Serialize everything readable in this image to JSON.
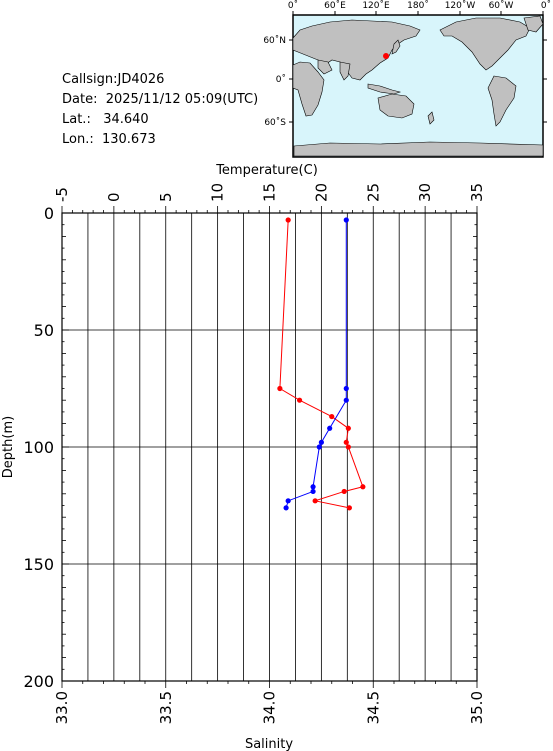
{
  "station": {
    "callsign": "Callsign:JD4026",
    "date": "Date:  2025/11/12 05:09(UTC)",
    "lat": "Lat.:   34.640",
    "lon": "Lon.:  130.673"
  },
  "map": {
    "top_labels": [
      "0˚",
      "60˚E",
      "120˚E",
      "180˚",
      "120˚W",
      "60˚W",
      "0˚"
    ],
    "left_labels": [
      "60˚N",
      "0˚",
      "60˚S"
    ],
    "ocean_color": "#d8f5fb",
    "land_color": "#c0c0c0",
    "marker_color": "#ff0000"
  },
  "chart_data": {
    "type": "line",
    "title": "",
    "depth_label": "Depth(m)",
    "temp_label": "Temperature(C)",
    "sal_label": "Salinity",
    "depth_range": [
      0,
      200
    ],
    "depth_ticks": [
      "0",
      "50",
      "100",
      "150",
      "200"
    ],
    "temp_range": [
      -5,
      35
    ],
    "temp_ticks": [
      "-5",
      "0",
      "5",
      "10",
      "15",
      "20",
      "25",
      "30",
      "35"
    ],
    "sal_range": [
      33.0,
      35.0
    ],
    "sal_ticks": [
      "33.0",
      "33.5",
      "34.0",
      "34.5",
      "35.0"
    ],
    "grid": true,
    "series": [
      {
        "axis": "temperature",
        "color": "#ff0000",
        "points": [
          {
            "x": 16.8,
            "depth": 3
          },
          {
            "x": 16.0,
            "depth": 75
          },
          {
            "x": 17.9,
            "depth": 80
          },
          {
            "x": 21.0,
            "depth": 87
          },
          {
            "x": 22.6,
            "depth": 92
          },
          {
            "x": 22.4,
            "depth": 98
          },
          {
            "x": 22.6,
            "depth": 100
          },
          {
            "x": 24.0,
            "depth": 117
          },
          {
            "x": 22.2,
            "depth": 119
          },
          {
            "x": 19.4,
            "depth": 123
          },
          {
            "x": 22.7,
            "depth": 126
          }
        ]
      },
      {
        "axis": "salinity",
        "color": "#0000ff",
        "points": [
          {
            "x": 34.37,
            "depth": 3
          },
          {
            "x": 34.37,
            "depth": 75
          },
          {
            "x": 34.37,
            "depth": 80
          },
          {
            "x": 34.29,
            "depth": 92
          },
          {
            "x": 34.25,
            "depth": 98
          },
          {
            "x": 34.24,
            "depth": 100
          },
          {
            "x": 34.21,
            "depth": 117
          },
          {
            "x": 34.21,
            "depth": 119
          },
          {
            "x": 34.09,
            "depth": 123
          },
          {
            "x": 34.08,
            "depth": 126
          }
        ]
      }
    ]
  }
}
